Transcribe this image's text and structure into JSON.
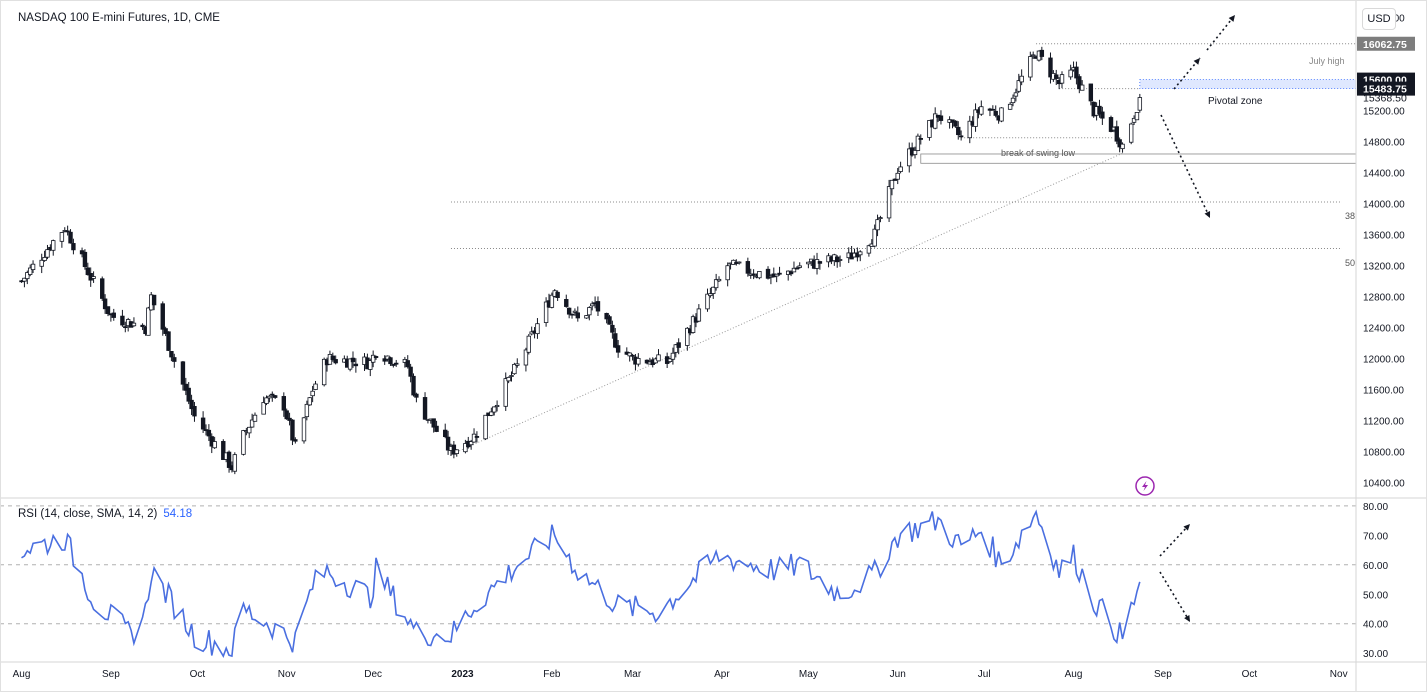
{
  "header": {
    "title": "NASDAQ 100 E-mini Futures, 1D, CME",
    "currency": "USD"
  },
  "rsi_header": {
    "label": "RSI (14, close, SMA, 14, 2)",
    "value": "54.18"
  },
  "annotations": {
    "july_high": "July high",
    "pivotal_zone": "Pivotal zone",
    "swing_low": "break of swing low",
    "fib_38": "38",
    "fib_50": "50"
  },
  "price_labels": [
    {
      "text": "16062.75",
      "value": 16062.75,
      "style": "gray"
    },
    {
      "text": "15600.00",
      "value": 15600.0,
      "style": "black"
    },
    {
      "text": "15483.75",
      "value": 15483.75,
      "style": "black"
    },
    {
      "text": "15368.50",
      "value": 15368.5,
      "style": "plain"
    }
  ],
  "colors": {
    "up": "#ffffff",
    "down": "#131722",
    "rsi_line": "#4a6fe0",
    "grid": "#c8c8c8",
    "pivotal_fill": "#dfe8ff",
    "pivotal_border": "#2962ff"
  },
  "chart_data": [
    {
      "type": "candlestick",
      "title": "NASDAQ 100 E-mini Futures, 1D, CME",
      "x_ticks": [
        "Aug",
        "Sep",
        "Oct",
        "Nov",
        "Dec",
        "2023",
        "Feb",
        "Mar",
        "Apr",
        "May",
        "Jun",
        "Jul",
        "Aug",
        "Sep",
        "Oct",
        "Nov"
      ],
      "y_ticks": [
        10400,
        10800,
        11200,
        11600,
        12000,
        12400,
        12800,
        13200,
        13600,
        14000,
        14400,
        14800,
        15200,
        16400
      ],
      "ylim": [
        10200,
        16550
      ],
      "levels": {
        "july_high": 16062.75,
        "pivotal_zone": [
          15483.75,
          15600.0
        ],
        "swing_low_zone": [
          14520,
          14640
        ],
        "fib_38": 14020,
        "fib_50": 13420
      },
      "trendline": [
        [
          "2022-12-28",
          10760
        ],
        [
          "2023-08-18",
          14650
        ]
      ],
      "anchors": [
        [
          "2022-08-01",
          13000
        ],
        [
          "2022-08-16",
          13700
        ],
        [
          "2022-09-01",
          12550
        ],
        [
          "2022-09-13",
          12400
        ],
        [
          "2022-09-15",
          12800
        ],
        [
          "2022-09-30",
          11250
        ],
        [
          "2022-10-13",
          10600
        ],
        [
          "2022-10-17",
          11000
        ],
        [
          "2022-10-24",
          11500
        ],
        [
          "2022-10-31",
          11400
        ],
        [
          "2022-11-04",
          10850
        ],
        [
          "2022-11-10",
          11600
        ],
        [
          "2022-11-15",
          12000
        ],
        [
          "2022-11-30",
          11950
        ],
        [
          "2022-12-02",
          12100
        ],
        [
          "2022-12-13",
          11900
        ],
        [
          "2022-12-16",
          11450
        ],
        [
          "2022-12-28",
          10800
        ],
        [
          "2023-01-05",
          11000
        ],
        [
          "2023-01-20",
          11900
        ],
        [
          "2023-02-02",
          12900
        ],
        [
          "2023-02-10",
          12500
        ],
        [
          "2023-02-16",
          12700
        ],
        [
          "2023-02-24",
          12150
        ],
        [
          "2023-03-01",
          12000
        ],
        [
          "2023-03-13",
          11950
        ],
        [
          "2023-03-31",
          13000
        ],
        [
          "2023-04-03",
          13200
        ],
        [
          "2023-04-20",
          13050
        ],
        [
          "2023-04-28",
          13200
        ],
        [
          "2023-05-15",
          13300
        ],
        [
          "2023-05-24",
          13600
        ],
        [
          "2023-06-01",
          14450
        ],
        [
          "2023-06-15",
          15150
        ],
        [
          "2023-06-23",
          14850
        ],
        [
          "2023-06-30",
          15250
        ],
        [
          "2023-07-07",
          15150
        ],
        [
          "2023-07-19",
          15950
        ],
        [
          "2023-07-27",
          15550
        ],
        [
          "2023-08-01",
          15700
        ],
        [
          "2023-08-08",
          15200
        ],
        [
          "2023-08-15",
          14950
        ],
        [
          "2023-08-18",
          14750
        ],
        [
          "2023-08-24",
          15368.5
        ]
      ]
    },
    {
      "type": "line",
      "title": "RSI (14, close, SMA, 14, 2)",
      "ylim": [
        27,
        82
      ],
      "y_ticks": [
        30,
        40,
        50,
        60,
        70,
        80
      ],
      "levels": [
        40,
        60,
        80
      ],
      "last_value": 54.18,
      "x": [
        "2022-08-01",
        "2022-08-16",
        "2022-08-26",
        "2022-09-08",
        "2022-09-13",
        "2022-09-15",
        "2022-09-30",
        "2022-10-13",
        "2022-10-17",
        "2022-10-24",
        "2022-11-04",
        "2022-11-10",
        "2022-11-15",
        "2022-11-30",
        "2022-12-02",
        "2022-12-16",
        "2022-12-28",
        "2023-01-05",
        "2023-01-20",
        "2023-02-02",
        "2023-02-10",
        "2023-02-24",
        "2023-03-10",
        "2023-03-31",
        "2023-04-20",
        "2023-04-28",
        "2023-05-12",
        "2023-05-24",
        "2023-06-01",
        "2023-06-15",
        "2023-06-23",
        "2023-06-30",
        "2023-07-07",
        "2023-07-19",
        "2023-07-27",
        "2023-08-01",
        "2023-08-08",
        "2023-08-18",
        "2023-08-24"
      ],
      "values": [
        65,
        69,
        48,
        36,
        44,
        58,
        36,
        31,
        45,
        41,
        34,
        53,
        58,
        49,
        58,
        37,
        36,
        46,
        60,
        70,
        58,
        46,
        44,
        63,
        58,
        60,
        50,
        57,
        70,
        75,
        66,
        72,
        60,
        78,
        58,
        63,
        48,
        35,
        54.18
      ]
    }
  ]
}
